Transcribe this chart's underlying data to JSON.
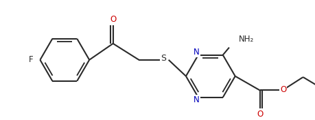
{
  "bg_color": "#ffffff",
  "line_color": "#2a2a2a",
  "N_color": "#0000bb",
  "O_color": "#cc0000",
  "F_color": "#2a2a2a",
  "S_color": "#2a2a2a",
  "line_width": 1.5,
  "figsize": [
    4.6,
    1.76
  ],
  "dpi": 100,
  "xlim": [
    0,
    10
  ],
  "ylim": [
    0,
    3.8
  ]
}
